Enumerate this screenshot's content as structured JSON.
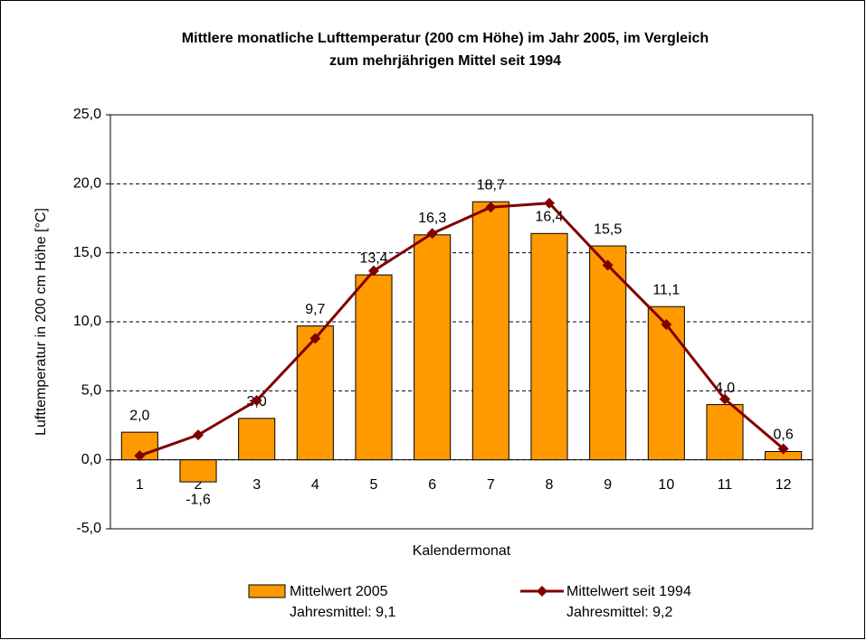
{
  "chart_data": {
    "type": "bar",
    "title": [
      "Mittlere monatliche Lufttemperatur (200 cm Höhe) im Jahr 2005, im Vergleich",
      "zum mehrjährigen Mittel seit 1994"
    ],
    "x_label": "Kalendermonat",
    "y_label": "Lufttemperatur in 200 cm Höhe [°C]",
    "categories": [
      "1",
      "2",
      "3",
      "4",
      "5",
      "6",
      "7",
      "8",
      "9",
      "10",
      "11",
      "12"
    ],
    "series": [
      {
        "name": "Mittelwert 2005",
        "note": "Jahresmittel: 9,1",
        "type": "bar",
        "color": "#ff9900",
        "values": [
          2.0,
          -1.6,
          3.0,
          9.7,
          13.4,
          16.3,
          18.7,
          16.4,
          15.5,
          11.1,
          4.0,
          0.6
        ],
        "value_labels": [
          "2,0",
          "-1,6",
          "3,0",
          "9,7",
          "13,4",
          "16,3",
          "18,7",
          "16,4",
          "15,5",
          "11,1",
          "4,0",
          "0,6"
        ]
      },
      {
        "name": "Mittelwert seit 1994",
        "note": "Jahresmittel: 9,2",
        "type": "line",
        "color": "#800000",
        "values": [
          0.3,
          1.8,
          4.3,
          8.8,
          13.7,
          16.4,
          18.3,
          18.6,
          14.1,
          9.8,
          4.4,
          0.8
        ]
      }
    ],
    "ylim": [
      -5,
      25
    ],
    "yticks": [
      {
        "value": -5,
        "label": "-5,0"
      },
      {
        "value": 0,
        "label": "0,0"
      },
      {
        "value": 5,
        "label": "5,0"
      },
      {
        "value": 10,
        "label": "10,0"
      },
      {
        "value": 15,
        "label": "15,0"
      },
      {
        "value": 20,
        "label": "20,0"
      },
      {
        "value": 25,
        "label": "25,0"
      }
    ],
    "grid": true
  }
}
